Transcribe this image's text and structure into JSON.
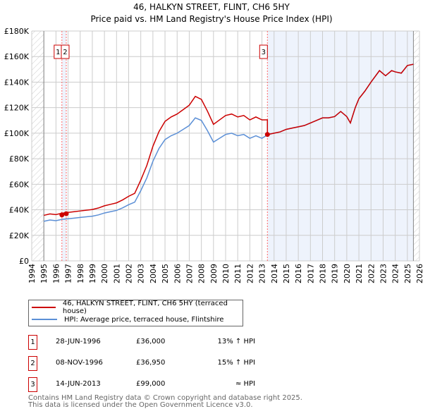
{
  "title": "46, HALKYN STREET, FLINT, CH6 5HY",
  "subtitle": "Price paid vs. HM Land Registry's House Price Index (HPI)",
  "chart_data": {
    "type": "line",
    "xlim": [
      1994,
      2026
    ],
    "ylim": [
      0,
      180000
    ],
    "xticks": [
      "1994",
      "1995",
      "1996",
      "1997",
      "1998",
      "1999",
      "2000",
      "2001",
      "2002",
      "2003",
      "2004",
      "2005",
      "2006",
      "2007",
      "2008",
      "2009",
      "2010",
      "2011",
      "2012",
      "2013",
      "2014",
      "2015",
      "2016",
      "2017",
      "2018",
      "2019",
      "2020",
      "2021",
      "2022",
      "2023",
      "2024",
      "2025",
      "2026"
    ],
    "yticks": [
      "£0",
      "£20K",
      "£40K",
      "£60K",
      "£80K",
      "£100K",
      "£120K",
      "£140K",
      "£160K",
      "£180K"
    ],
    "grid": true,
    "colors": {
      "property": "#cc0000",
      "hpi": "#5b8fd6",
      "shade": "#eef3fc",
      "vline": "#ff6666"
    },
    "series": [
      {
        "name": "HPI: Average price, terraced house, Flintshire",
        "x": [
          1995,
          1995.5,
          1996,
          1996.5,
          1997,
          1997.5,
          1998,
          1998.5,
          1999,
          1999.5,
          2000,
          2000.5,
          2001,
          2001.5,
          2002,
          2002.5,
          2003,
          2003.5,
          2004,
          2004.5,
          2005,
          2005.5,
          2006,
          2006.5,
          2007,
          2007.5,
          2008,
          2008.5,
          2009,
          2009.5,
          2010,
          2010.5,
          2011,
          2011.5,
          2012,
          2012.5,
          2013,
          2013.5,
          2014,
          2014.5,
          2015,
          2015.5,
          2016,
          2016.5,
          2017,
          2017.5,
          2018,
          2018.5,
          2019,
          2019.5,
          2020,
          2020.3,
          2020.7,
          2021,
          2021.5,
          2022,
          2022.7,
          2023.2,
          2023.7,
          2024,
          2024.5,
          2025,
          2025.5
        ],
        "y": [
          31000,
          32000,
          31500,
          32500,
          33000,
          33500,
          34000,
          34500,
          35000,
          36000,
          37500,
          38500,
          39500,
          41500,
          44000,
          46000,
          55000,
          65000,
          78000,
          88000,
          95000,
          98000,
          100000,
          103000,
          106000,
          112000,
          110000,
          102000,
          93000,
          96000,
          99000,
          100000,
          98000,
          99000,
          96000,
          98000,
          96000,
          99000,
          100000,
          101000,
          103000,
          104000,
          105000,
          106000,
          108000,
          110000,
          112000,
          112000,
          113000,
          117000,
          113000,
          108000,
          120000,
          127000,
          133000,
          140000,
          149000,
          145000,
          149000,
          148000,
          147000,
          153000,
          154000
        ]
      },
      {
        "name": "46, HALKYN STREET, FLINT, CH6 5HY (terraced house)",
        "property_factor_before_2013": 1.15
      }
    ],
    "sales": [
      {
        "label": "1",
        "x": 1996.49,
        "y": 36000
      },
      {
        "label": "2",
        "x": 1996.85,
        "y": 36950
      },
      {
        "label": "3",
        "x": 2013.45,
        "y": 99000
      }
    ]
  },
  "legend": {
    "property": "46, HALKYN STREET, FLINT, CH6 5HY (terraced house)",
    "hpi": "HPI: Average price, terraced house, Flintshire"
  },
  "transactions": [
    {
      "num": "1",
      "date": "28-JUN-1996",
      "price": "£36,000",
      "hpi": "13% ↑ HPI"
    },
    {
      "num": "2",
      "date": "08-NOV-1996",
      "price": "£36,950",
      "hpi": "15% ↑ HPI"
    },
    {
      "num": "3",
      "date": "14-JUN-2013",
      "price": "£99,000",
      "hpi": "≈ HPI"
    }
  ],
  "footer": {
    "line1": "Contains HM Land Registry data © Crown copyright and database right 2025.",
    "line2": "This data is licensed under the Open Government Licence v3.0."
  }
}
